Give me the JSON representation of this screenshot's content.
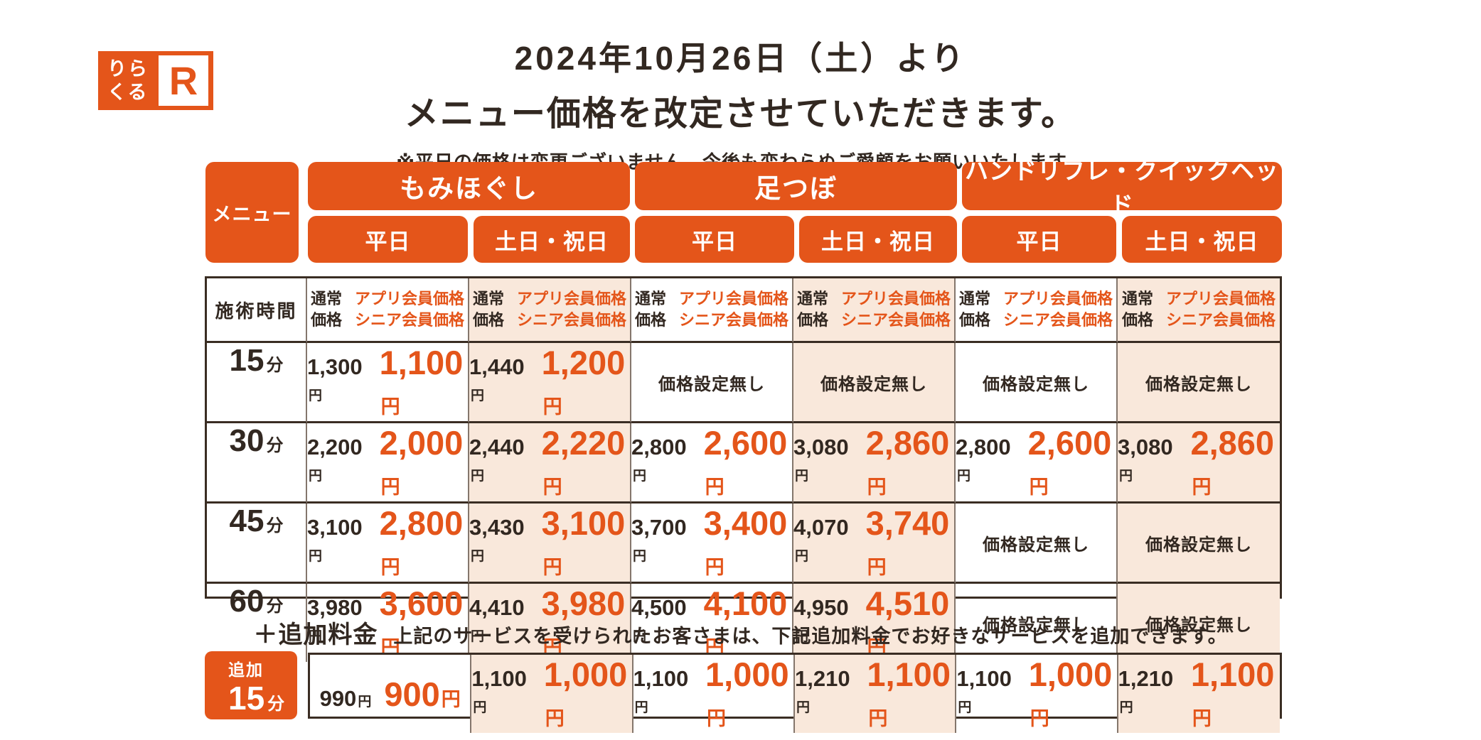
{
  "brand": {
    "name_line1": "りら",
    "name_line2": "くる",
    "r_mark": "R"
  },
  "title": {
    "line1": "2024年10月26日（土）より",
    "line2": "メニュー価格を改定させていただきます。",
    "note": "※平日の価格は変更ございません。今後も変わらぬご愛顧をお願いいたします。"
  },
  "menu_label": "メニュー",
  "categories": [
    {
      "label": "もみほぐし"
    },
    {
      "label": "足つぼ"
    },
    {
      "label": "ハンドリフレ・クイックヘッド"
    }
  ],
  "day_headers": {
    "weekday": "平日",
    "weekend": "土日・祝日"
  },
  "units": {
    "yen": "円",
    "minute": "分"
  },
  "strings": {
    "no_price": "価格設定無し"
  },
  "table": {
    "time_header": "施術時間",
    "price_header": {
      "regular": [
        "通常",
        "価格"
      ],
      "member": [
        "アプリ会員価格",
        "シニア会員価格"
      ]
    },
    "rows": [
      {
        "time": "15",
        "cells": [
          {
            "regular": "1,300",
            "member": "1,100"
          },
          {
            "regular": "1,440",
            "member": "1,200"
          },
          null,
          null,
          null,
          null
        ]
      },
      {
        "time": "30",
        "cells": [
          {
            "regular": "2,200",
            "member": "2,000"
          },
          {
            "regular": "2,440",
            "member": "2,220"
          },
          {
            "regular": "2,800",
            "member": "2,600"
          },
          {
            "regular": "3,080",
            "member": "2,860"
          },
          {
            "regular": "2,800",
            "member": "2,600"
          },
          {
            "regular": "3,080",
            "member": "2,860"
          }
        ]
      },
      {
        "time": "45",
        "cells": [
          {
            "regular": "3,100",
            "member": "2,800"
          },
          {
            "regular": "3,430",
            "member": "3,100"
          },
          {
            "regular": "3,700",
            "member": "3,400"
          },
          {
            "regular": "4,070",
            "member": "3,740"
          },
          null,
          null
        ]
      },
      {
        "time": "60",
        "cells": [
          {
            "regular": "3,980",
            "member": "3,600"
          },
          {
            "regular": "4,410",
            "member": "3,980"
          },
          {
            "regular": "4,500",
            "member": "4,100"
          },
          {
            "regular": "4,950",
            "member": "4,510"
          },
          null,
          null
        ]
      }
    ]
  },
  "addon": {
    "plus_label": "＋追加料金",
    "description": "上記のサービスを受けられたお客さまは、下記追加料金でお好きなサービスを追加できます。",
    "box": {
      "line1": "追加",
      "time": "15"
    },
    "cells": [
      {
        "regular": "990",
        "member": "900"
      },
      {
        "regular": "1,100",
        "member": "1,000"
      },
      {
        "regular": "1,100",
        "member": "1,000"
      },
      {
        "regular": "1,210",
        "member": "1,100"
      },
      {
        "regular": "1,100",
        "member": "1,000"
      },
      {
        "regular": "1,210",
        "member": "1,100"
      }
    ]
  },
  "colors": {
    "accent_orange": "#E4551A",
    "weekend_peach": "#F9E8DB",
    "text_dark": "#322821"
  }
}
